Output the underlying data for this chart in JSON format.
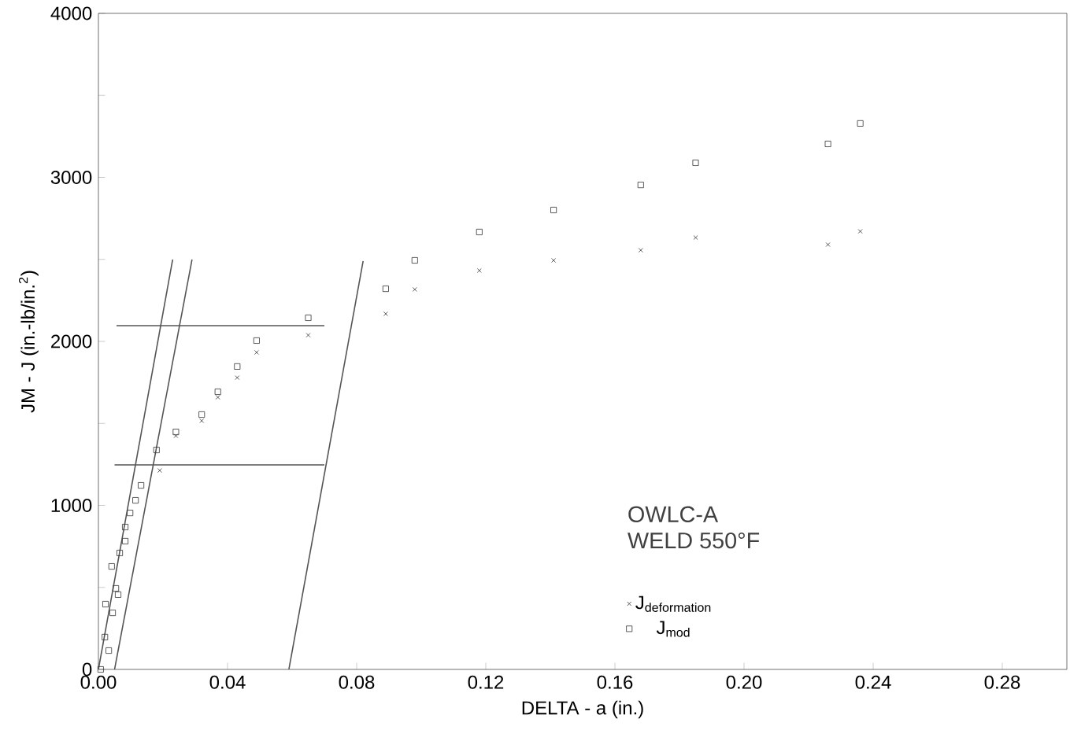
{
  "chart_data": {
    "type": "scatter",
    "xlabel": "DELTA - a (in.)",
    "ylabel": "JM - J (in.-lb/in.$^{2}$)",
    "annotations": [
      "OWLC-A",
      "WELD 550°F"
    ],
    "xlim": [
      0,
      0.3
    ],
    "ylim": [
      0,
      4000
    ],
    "xticks": [
      {
        "value": 0,
        "label": "0.00"
      },
      {
        "value": 0.04,
        "label": "0.04"
      },
      {
        "value": 0.08,
        "label": "0.08"
      },
      {
        "value": 0.12,
        "label": "0.12"
      },
      {
        "value": 0.16,
        "label": "0.16"
      },
      {
        "value": 0.2,
        "label": "0.20"
      },
      {
        "value": 0.24,
        "label": "0.24"
      },
      {
        "value": 0.28,
        "label": "0.28"
      }
    ],
    "yticks": [
      0,
      {
        "value": 500,
        "label": null
      },
      1000,
      {
        "value": 1500,
        "label": null
      },
      2000,
      {
        "value": 2500,
        "label": null
      },
      3000,
      {
        "value": 3500,
        "label": null
      },
      4000
    ],
    "grid": false,
    "legend": "bottom",
    "series": [
      {
        "name": "\\mathrm{J}_{\\mathrm{deformation}}",
        "marker": "cross",
        "color": "#333333",
        "x": [
          0.019,
          0.024,
          0.032,
          0.037,
          0.043,
          0.049,
          0.065,
          0.089,
          0.098,
          0.118,
          0.141,
          0.168,
          0.185,
          0.226,
          0.236
        ],
        "values": [
          1213,
          1424,
          1516,
          1659,
          1779,
          1933,
          2038,
          2168,
          2317,
          2432,
          2494,
          2556,
          2633,
          2590,
          2671
        ]
      },
      {
        "name": "\\mathrm{J}_{\\mathrm{mod}}",
        "marker": "square",
        "color": "#333333",
        "x": [
          0.0007,
          0.0032,
          0.002,
          0.0044,
          0.0022,
          0.0061,
          0.0054,
          0.0041,
          0.0066,
          0.0083,
          0.0083,
          0.0098,
          0.0115,
          0.0132,
          0.018,
          0.024,
          0.032,
          0.037,
          0.043,
          0.049,
          0.065,
          0.089,
          0.098,
          0.118,
          0.141,
          0.168,
          0.185,
          0.226,
          0.236
        ],
        "values": [
          0,
          115,
          197,
          345,
          398,
          456,
          494,
          628,
          710,
          782,
          868,
          954,
          1031,
          1122,
          1338,
          1448,
          1554,
          1693,
          1847,
          2005,
          2144,
          2321,
          2494,
          2667,
          2801,
          2954,
          3089,
          3204,
          3329
        ]
      },
      {
        "type": "line",
        "marker": "none",
        "line_style": "solid",
        "color": "#555555",
        "x": [
          0,
          0.023
        ],
        "values": [
          0,
          2499
        ]
      },
      {
        "type": "line",
        "marker": "none",
        "line_style": "solid",
        "color": "#555555",
        "x": [
          0.005,
          0.029
        ],
        "values": [
          0,
          2499
        ]
      },
      {
        "type": "line",
        "marker": "none",
        "line_style": "solid",
        "color": "#555555",
        "x": [
          0.059,
          0.082
        ],
        "values": [
          0,
          2490
        ]
      },
      {
        "type": "line",
        "marker": "none",
        "line_style": "solid",
        "color": "#555555",
        "x": [
          0.0056,
          0.07
        ],
        "values": [
          2096,
          2096
        ]
      },
      {
        "type": "line",
        "marker": "none",
        "line_style": "solid",
        "color": "#555555",
        "x": [
          0.005,
          0.07
        ],
        "values": [
          1247,
          1247
        ]
      }
    ]
  }
}
